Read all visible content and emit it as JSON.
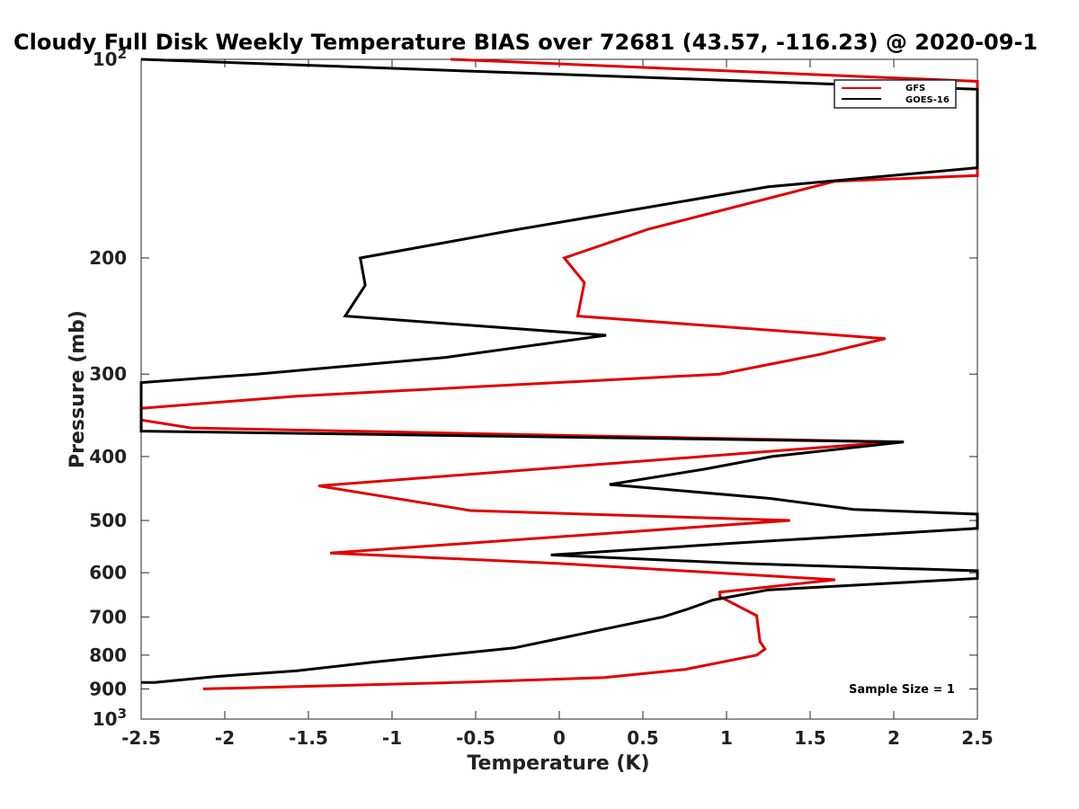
{
  "chart_data": {
    "type": "line",
    "title": "Cloudy Full Disk Weekly Temperature BIAS over 72681 (43.57, -116.23) @ 2020-09-1",
    "xlabel": "Temperature (K)",
    "ylabel": "Pressure (mb)",
    "xlim": [
      -2.5,
      2.5
    ],
    "ylim": [
      100,
      1000
    ],
    "yscale": "log",
    "y_reversed": true,
    "xticks": [
      "-2.5",
      "-2",
      "-1.5",
      "-1",
      "-0.5",
      "0",
      "0.5",
      "1",
      "1.5",
      "2",
      "2.5"
    ],
    "yticks": [
      {
        "value": 100,
        "base": "10",
        "exp": "2"
      },
      {
        "value": 200,
        "label": "200"
      },
      {
        "value": 300,
        "label": "300"
      },
      {
        "value": 400,
        "label": "400"
      },
      {
        "value": 500,
        "label": "500"
      },
      {
        "value": 600,
        "label": "600"
      },
      {
        "value": 700,
        "label": "700"
      },
      {
        "value": 800,
        "label": "800"
      },
      {
        "value": 900,
        "label": "900"
      },
      {
        "value": 1000,
        "base": "10",
        "exp": "3"
      }
    ],
    "grid": false,
    "legend_position": "top-right",
    "series": [
      {
        "name": "GFS",
        "color": "#e00000",
        "points": [
          [
            -0.65,
            100
          ],
          [
            2.5,
            108
          ],
          [
            2.5,
            150
          ],
          [
            1.65,
            153
          ],
          [
            0.53,
            181
          ],
          [
            0.03,
            200
          ],
          [
            0.15,
            218
          ],
          [
            0.11,
            245
          ],
          [
            1.95,
            265
          ],
          [
            1.56,
            280
          ],
          [
            0.96,
            300
          ],
          [
            -1.57,
            324
          ],
          [
            -2.5,
            338
          ],
          [
            -2.5,
            352
          ],
          [
            -2.2,
            362
          ],
          [
            2.0,
            380
          ],
          [
            -1.44,
            443
          ],
          [
            -0.53,
            483
          ],
          [
            1.38,
            500
          ],
          [
            -1.37,
            560
          ],
          [
            0.0,
            581
          ],
          [
            1.65,
            615
          ],
          [
            0.96,
            642
          ],
          [
            0.96,
            652
          ],
          [
            1.18,
            697
          ],
          [
            1.2,
            763
          ],
          [
            1.23,
            783
          ],
          [
            1.18,
            800
          ],
          [
            0.75,
            841
          ],
          [
            0.27,
            865
          ],
          [
            -0.68,
            881
          ],
          [
            -2.13,
            900
          ]
        ]
      },
      {
        "name": "GOES-16",
        "color": "#000000",
        "points": [
          [
            -2.5,
            100
          ],
          [
            2.5,
            111
          ],
          [
            2.5,
            146
          ],
          [
            1.25,
            156
          ],
          [
            -0.3,
            182
          ],
          [
            -1.19,
            200
          ],
          [
            -1.16,
            220
          ],
          [
            -1.28,
            245
          ],
          [
            0.28,
            262
          ],
          [
            -0.68,
            283
          ],
          [
            -1.81,
            300
          ],
          [
            -2.5,
            309
          ],
          [
            -2.5,
            366
          ],
          [
            2.06,
            380
          ],
          [
            1.27,
            400
          ],
          [
            0.87,
            418
          ],
          [
            0.3,
            441
          ],
          [
            1.26,
            463
          ],
          [
            1.76,
            481
          ],
          [
            2.5,
            489
          ],
          [
            2.5,
            514
          ],
          [
            1.0,
            542
          ],
          [
            -0.05,
            564
          ],
          [
            1.1,
            581
          ],
          [
            2.5,
            596
          ],
          [
            2.5,
            612
          ],
          [
            1.25,
            637
          ],
          [
            0.92,
            660
          ],
          [
            0.77,
            681
          ],
          [
            0.62,
            700
          ],
          [
            -0.27,
            780
          ],
          [
            -1.12,
            820
          ],
          [
            -1.57,
            845
          ],
          [
            -2.06,
            862
          ],
          [
            -2.42,
            880
          ],
          [
            -2.5,
            880
          ]
        ]
      }
    ],
    "annotations": [
      "Sample Size = 1"
    ]
  }
}
